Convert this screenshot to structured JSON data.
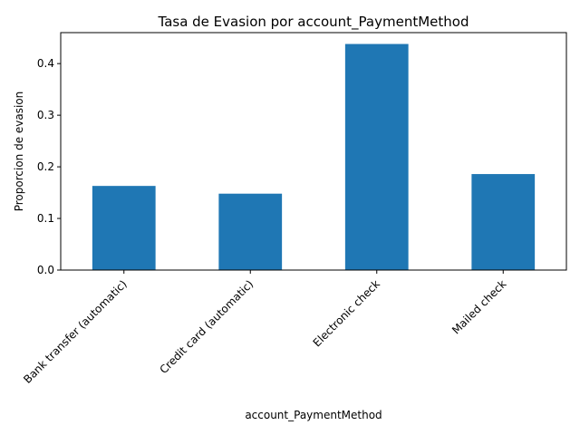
{
  "chart_data": {
    "type": "bar",
    "title": "Tasa de Evasion por account_PaymentMethod",
    "xlabel": "account_PaymentMethod",
    "ylabel": "Proporcion de evasion",
    "categories": [
      "Bank transfer (automatic)",
      "Credit card (automatic)",
      "Electronic check",
      "Mailed check"
    ],
    "values": [
      0.163,
      0.148,
      0.438,
      0.186
    ],
    "ylim": [
      0,
      0.46
    ],
    "yticks": [
      "0.0",
      "0.1",
      "0.2",
      "0.3",
      "0.4"
    ],
    "grid": false,
    "bar_color": "#1f77b4"
  }
}
